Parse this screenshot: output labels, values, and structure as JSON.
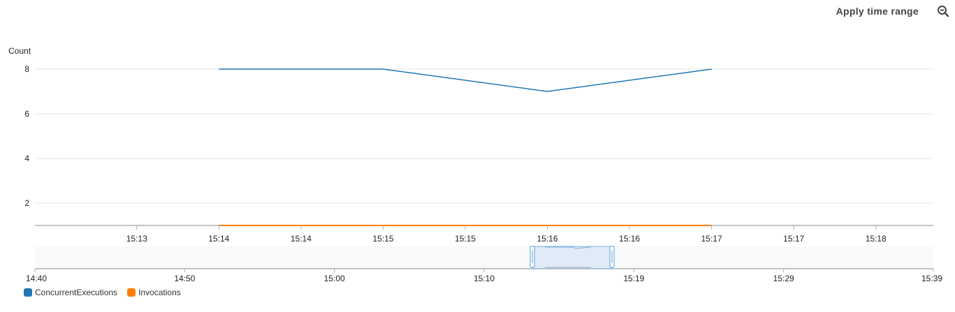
{
  "toolbar": {
    "apply_label": "Apply time range",
    "zoom_icon": "zoom-out-icon"
  },
  "colors": {
    "series1": "#1f77b4",
    "series2": "#ff7f0e",
    "grid": "#e6e6e6",
    "axis": "#b0b0b0"
  },
  "chart_data": {
    "type": "line",
    "ylabel": "Count",
    "ylim": [
      1,
      8.3
    ],
    "yticks": [
      2,
      4,
      6,
      8
    ],
    "x_tick_labels": [
      "15:13",
      "15:14",
      "15:14",
      "15:15",
      "15:15",
      "15:16",
      "15:16",
      "15:17",
      "15:17",
      "15:18"
    ],
    "x_tick_slots": [
      0.5,
      1,
      1.5,
      2,
      2.5,
      3,
      3.5,
      4,
      4.5,
      5
    ],
    "x_range_slots": [
      -0.12,
      5.35
    ],
    "x_points": [
      "15:14",
      "15:15",
      "15:16",
      "15:17"
    ],
    "x_point_slots": [
      1,
      2,
      3,
      4
    ],
    "series": [
      {
        "name": "ConcurrentExecutions",
        "values": [
          8,
          8,
          7,
          8
        ]
      },
      {
        "name": "Invocations",
        "values": [
          1,
          1,
          1,
          1
        ]
      }
    ],
    "grid": true,
    "legend": "bottom-left",
    "navigator": {
      "tick_labels": [
        "14:40",
        "14:50",
        "15:00",
        "15:10",
        "15:19",
        "15:29",
        "15:39"
      ],
      "selection_start": "15:12",
      "selection_end": "15:18"
    }
  }
}
